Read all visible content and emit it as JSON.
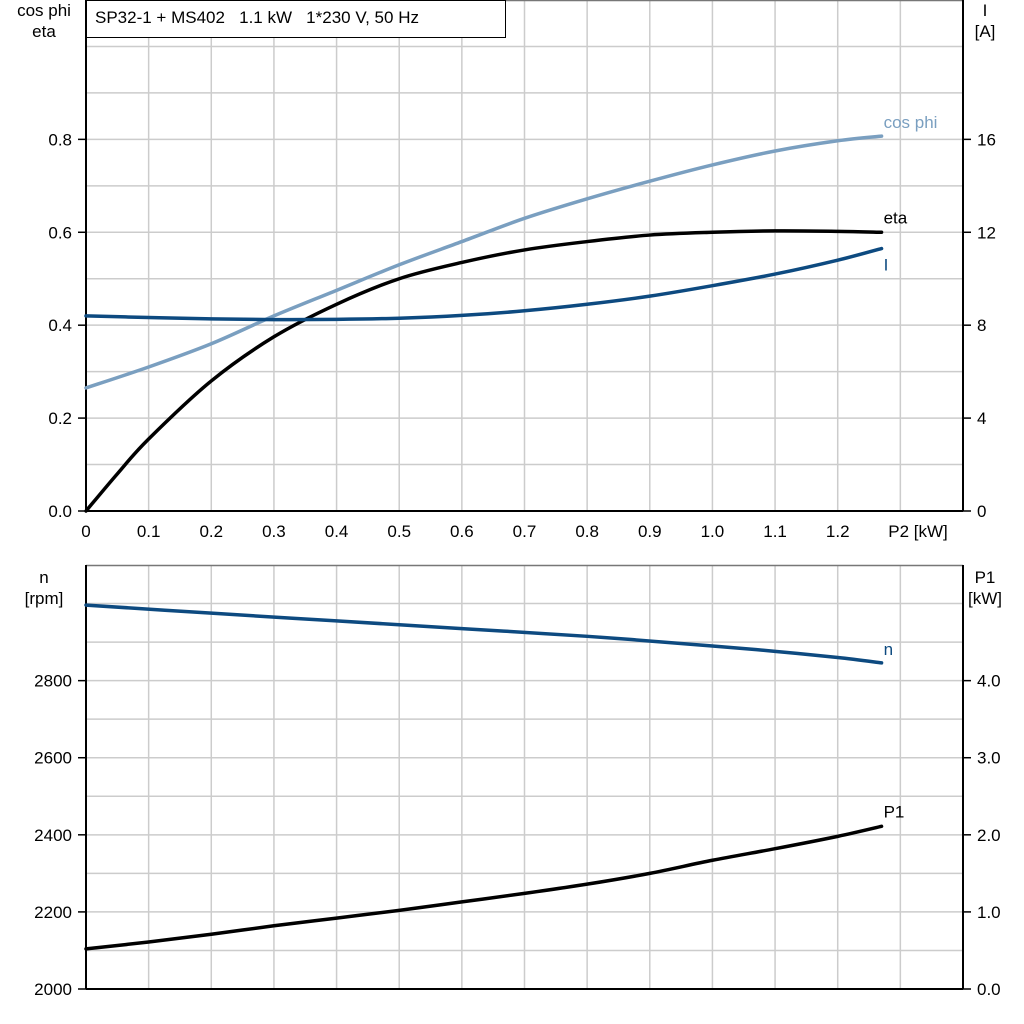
{
  "title": "SP32-1 + MS402   1.1 kW   1*230 V, 50 Hz",
  "colors": {
    "cos_phi": "#7a9fc0",
    "eta": "#000000",
    "I": "#0d4a80",
    "n": "#0d4a80",
    "P1": "#000000",
    "grid": "#cccccc"
  },
  "chart_data": [
    {
      "type": "line",
      "xlabel": "P2 [kW]",
      "xlim": [
        0,
        1.4
      ],
      "x_ticks": [
        "0",
        "0.1",
        "0.2",
        "0.3",
        "0.4",
        "0.5",
        "0.6",
        "0.7",
        "0.8",
        "0.9",
        "1.0",
        "1.1",
        "1.2"
      ],
      "ylabel_left": [
        "cos phi",
        "eta"
      ],
      "ylim_left": [
        0,
        1.1
      ],
      "y_ticks_left": [
        "0.0",
        "0.2",
        "0.4",
        "0.6",
        "0.8"
      ],
      "ylabel_right": [
        "I",
        "[A]"
      ],
      "ylim_right": [
        0,
        22
      ],
      "y_ticks_right": [
        "0",
        "4",
        "8",
        "12",
        "16"
      ],
      "grid": true,
      "series": [
        {
          "name": "cos phi",
          "axis": "left",
          "x": [
            0,
            0.1,
            0.2,
            0.3,
            0.4,
            0.5,
            0.6,
            0.7,
            0.8,
            0.9,
            1.0,
            1.1,
            1.2,
            1.27
          ],
          "y": [
            0.265,
            0.31,
            0.36,
            0.42,
            0.475,
            0.53,
            0.58,
            0.63,
            0.672,
            0.71,
            0.745,
            0.775,
            0.797,
            0.807
          ]
        },
        {
          "name": "eta",
          "axis": "left",
          "x": [
            0,
            0.05,
            0.1,
            0.2,
            0.3,
            0.4,
            0.5,
            0.6,
            0.7,
            0.8,
            0.9,
            1.0,
            1.1,
            1.2,
            1.27
          ],
          "y": [
            0,
            0.08,
            0.155,
            0.28,
            0.375,
            0.445,
            0.5,
            0.535,
            0.562,
            0.58,
            0.594,
            0.6,
            0.603,
            0.602,
            0.6
          ]
        },
        {
          "name": "I",
          "axis": "right",
          "x": [
            0,
            0.1,
            0.2,
            0.3,
            0.4,
            0.5,
            0.6,
            0.7,
            0.8,
            0.9,
            1.0,
            1.1,
            1.2,
            1.27
          ],
          "y": [
            8.4,
            8.33,
            8.27,
            8.24,
            8.25,
            8.3,
            8.42,
            8.62,
            8.9,
            9.25,
            9.7,
            10.2,
            10.8,
            11.3
          ]
        }
      ]
    },
    {
      "type": "line",
      "xlim": [
        0,
        1.4
      ],
      "ylabel_left": [
        "n",
        "[rpm]"
      ],
      "ylim_left": [
        2000,
        3100
      ],
      "y_ticks_left": [
        "2000",
        "2200",
        "2400",
        "2600",
        "2800"
      ],
      "ylabel_right": [
        "P1",
        "[kW]"
      ],
      "ylim_right": [
        0,
        5.5
      ],
      "y_ticks_right": [
        "0.0",
        "1.0",
        "2.0",
        "3.0",
        "4.0"
      ],
      "grid": true,
      "series": [
        {
          "name": "n",
          "axis": "left",
          "x": [
            0,
            0.2,
            0.4,
            0.6,
            0.8,
            1.0,
            1.1,
            1.2,
            1.27
          ],
          "y": [
            2996,
            2975,
            2955,
            2935,
            2915,
            2890,
            2876,
            2860,
            2846
          ]
        },
        {
          "name": "P1",
          "axis": "right",
          "x": [
            0,
            0.1,
            0.2,
            0.3,
            0.4,
            0.5,
            0.6,
            0.7,
            0.8,
            0.9,
            1.0,
            1.1,
            1.2,
            1.27
          ],
          "y": [
            0.52,
            0.61,
            0.71,
            0.82,
            0.92,
            1.02,
            1.13,
            1.24,
            1.36,
            1.5,
            1.67,
            1.82,
            1.98,
            2.11
          ]
        }
      ]
    }
  ]
}
